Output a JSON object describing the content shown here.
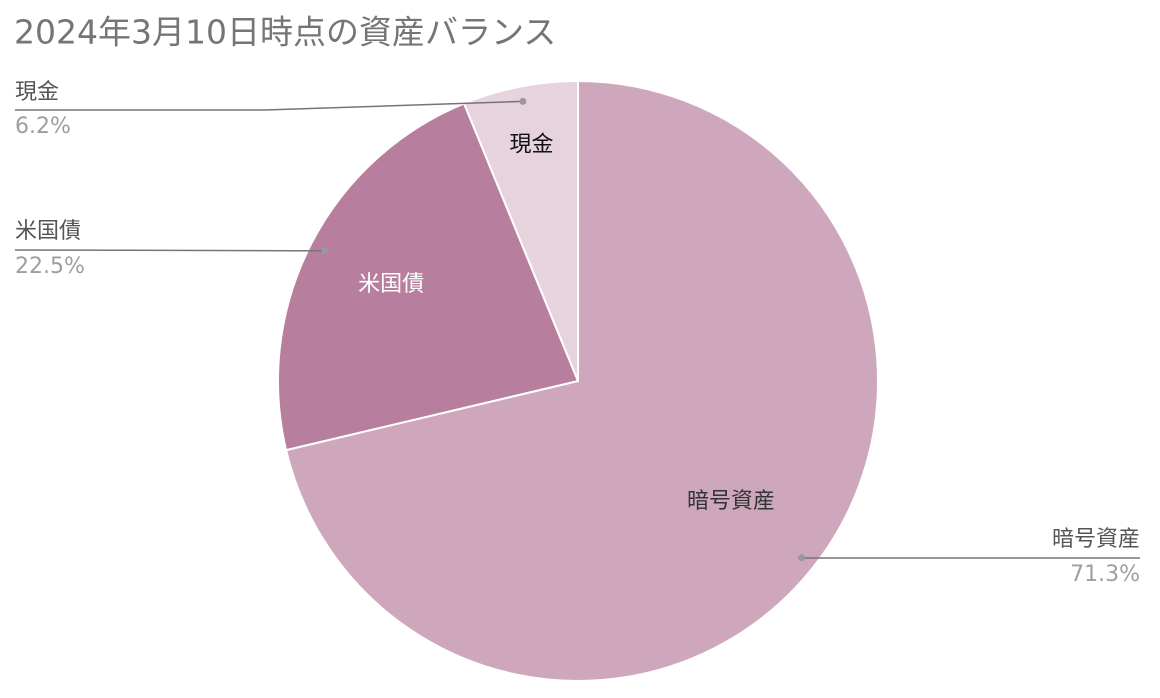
{
  "chart_data": {
    "type": "pie",
    "title": "2024年3月10日時点の資産バランス",
    "categories": [
      "暗号資産",
      "米国債",
      "現金"
    ],
    "values": [
      71.3,
      22.5,
      6.2
    ],
    "value_labels": [
      "71.3%",
      "22.5%",
      "6.2%"
    ],
    "colors": [
      "#cfa7bd",
      "#b77f9d",
      "#e6d3de"
    ]
  }
}
